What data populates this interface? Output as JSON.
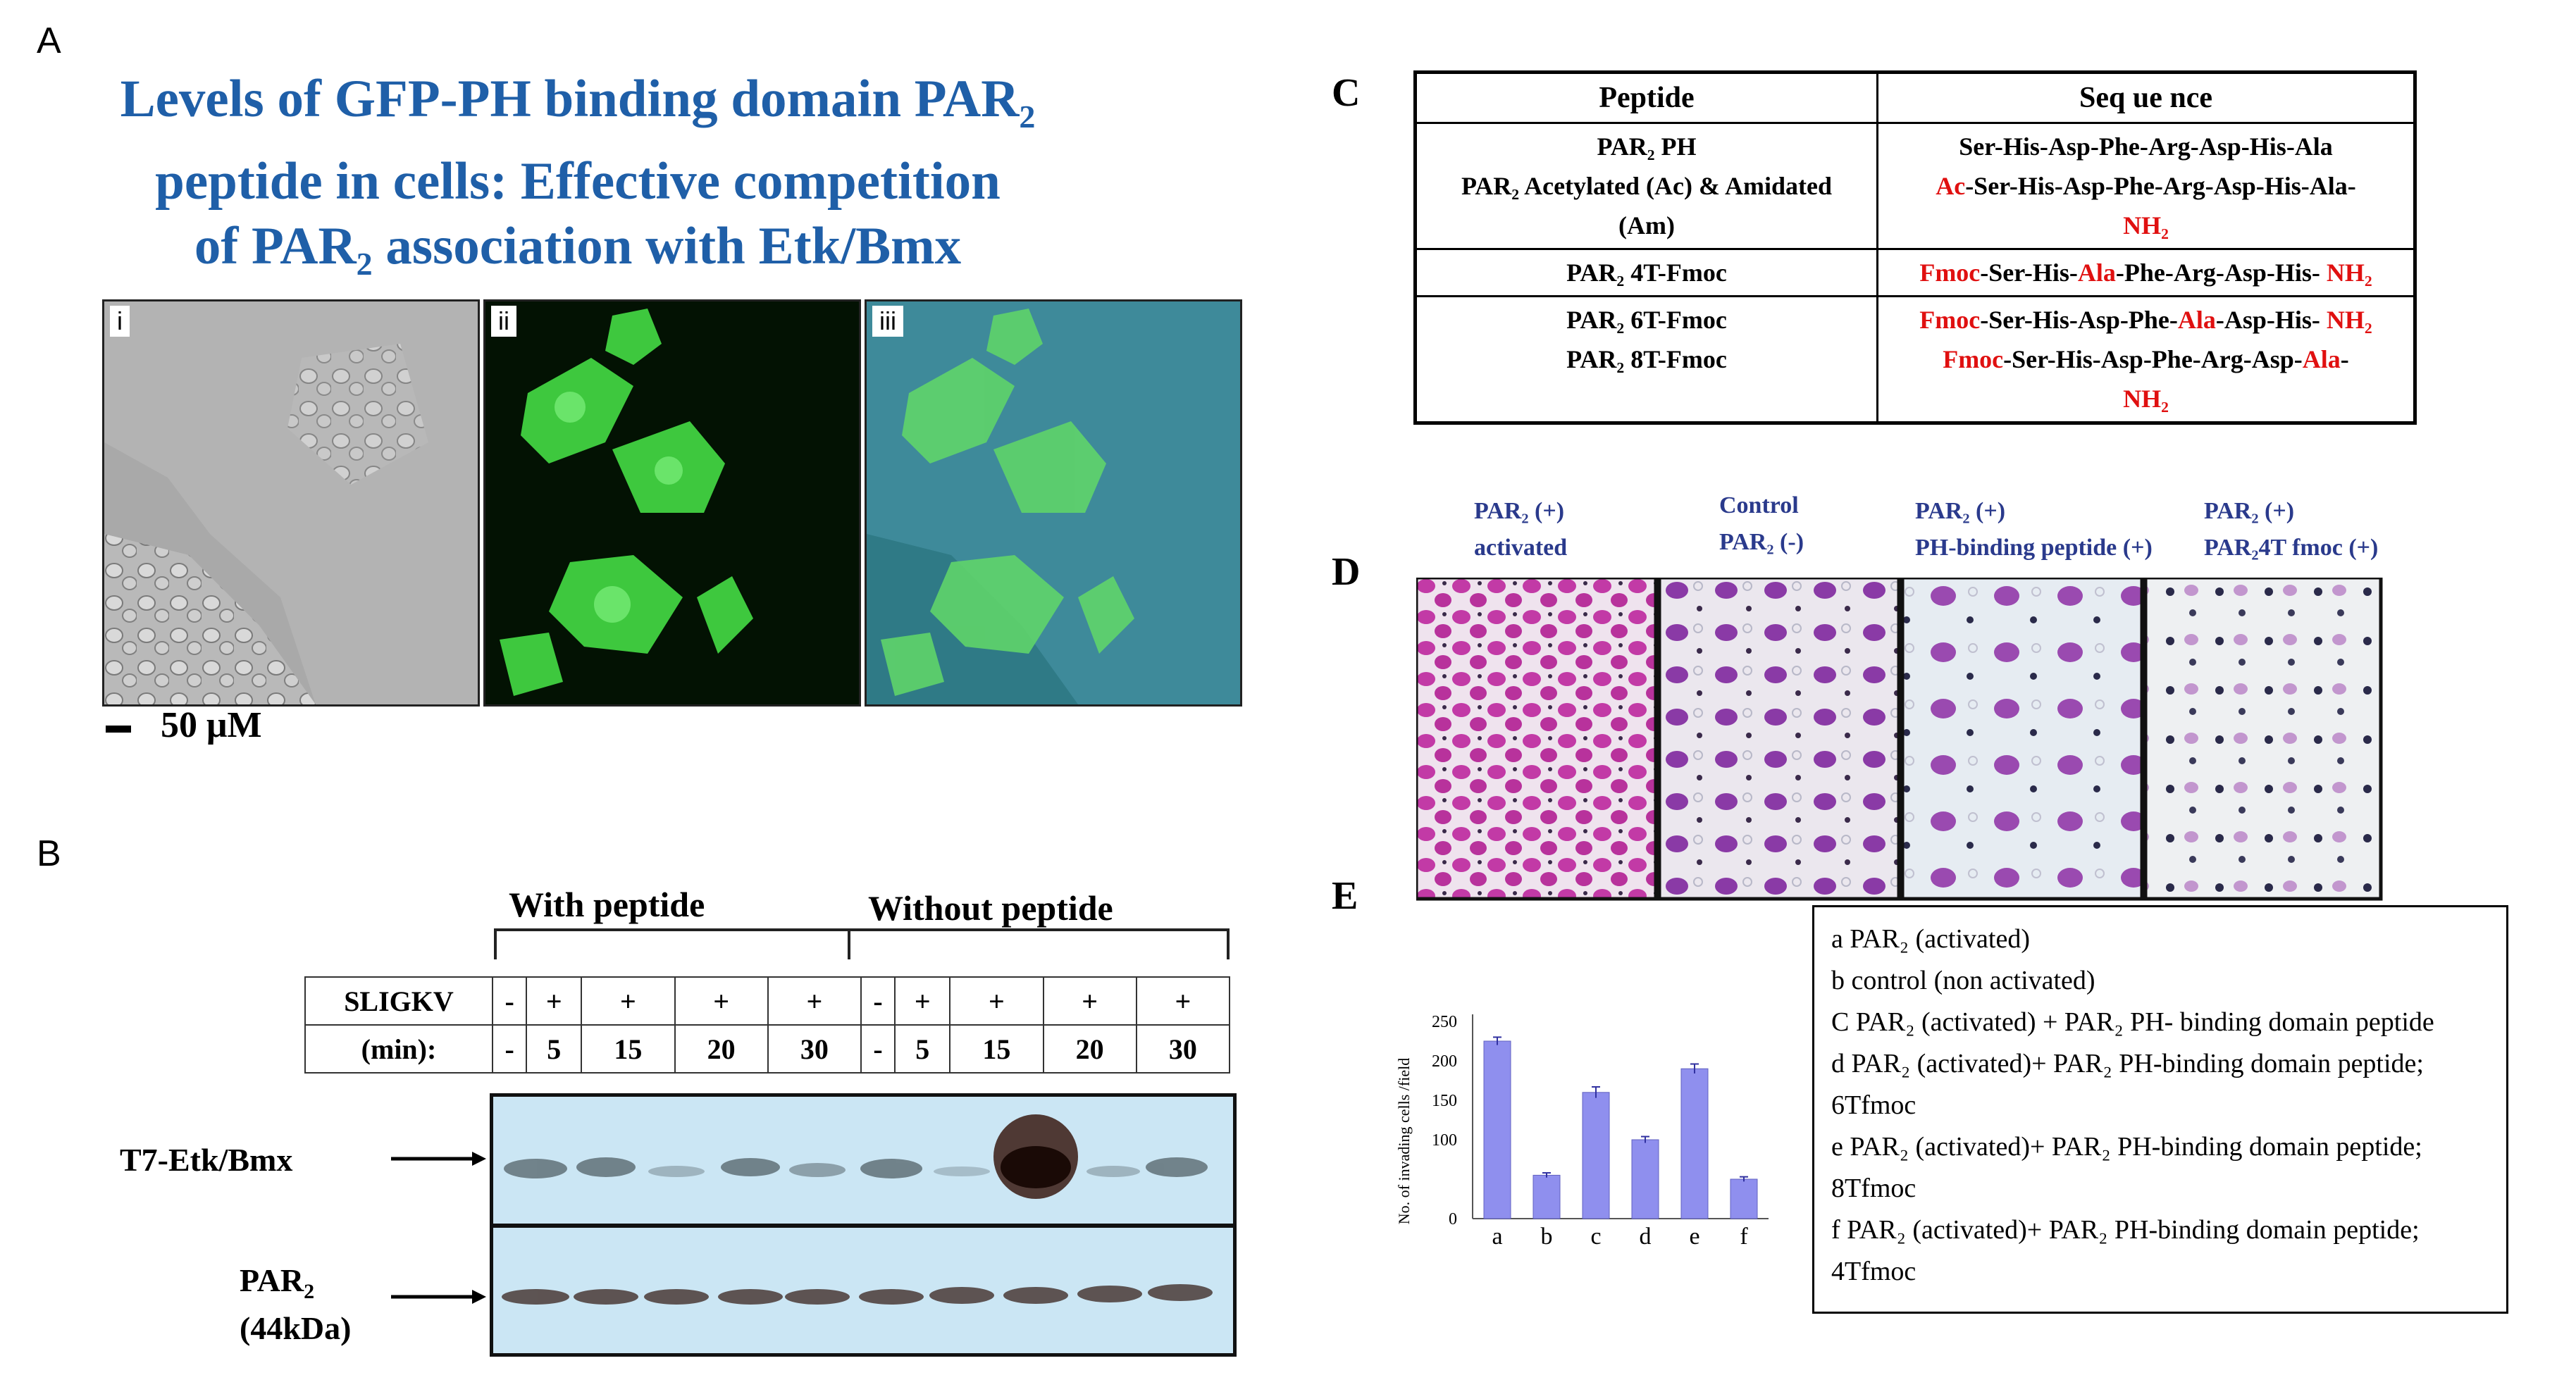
{
  "panels": {
    "a": "A",
    "b": "B",
    "c": "C",
    "d": "D",
    "e": "E"
  },
  "panel_a": {
    "title_line1": "Levels of GFP-PH binding domain PAR",
    "title_line1_sub": "2",
    "title_line2": "peptide in cells: Effective competition",
    "title_line3_pre": "of PAR",
    "title_line3_sub": "2",
    "title_line3_post": " association with Etk/Bmx",
    "images": [
      {
        "label": "i"
      },
      {
        "label": "ii"
      },
      {
        "label": "iii"
      }
    ],
    "scale": "50 μM"
  },
  "panel_b": {
    "group_with": "With peptide",
    "group_without": "Without peptide",
    "row1_label": "SLIGKV",
    "row1": [
      "-",
      "+",
      "+",
      "+",
      "+",
      "-",
      "+",
      "+",
      "+",
      "+"
    ],
    "row2_label": "(min):",
    "row2": [
      "-",
      "5",
      "15",
      "20",
      "30",
      "-",
      "5",
      "15",
      "20",
      "30"
    ],
    "blot1_label": "T7-Etk/Bmx",
    "blot2_label": "PAR",
    "blot2_label_sub": "2",
    "blot2_label2": "(44kDa)"
  },
  "panel_c": {
    "header_peptide": "Peptide",
    "header_sequence": "Seq ue nce",
    "r1_peptides": [
      "PAR₂ PH",
      "PAR₂ Acetylated (Ac) & Amidated",
      "(Am)"
    ],
    "r1_seq1": "Ser-His-Asp-Phe-Arg-Asp-His-Ala",
    "r1_seq2_red": "Ac",
    "r1_seq2": "-Ser-His-Asp-Phe-Arg-Asp-His-Ala-",
    "r1_seq3_red": "NH₂",
    "r2_peptide": "PAR₂ 4T-Fmoc",
    "r2_a": "Fmoc",
    "r2_b": "-Ser-His-",
    "r2_c": "Ala",
    "r2_d": "-Phe-Arg-Asp-His- ",
    "r2_e": "NH₂",
    "r3_peptides": [
      "PAR₂ 6T-Fmoc",
      "PAR₂ 8T-Fmoc"
    ],
    "r3_l1_a": "Fmoc",
    "r3_l1_b": "-Ser-His-Asp-Phe-",
    "r3_l1_c": "Ala",
    "r3_l1_d": "-Asp-His- ",
    "r3_l1_e": "NH₂",
    "r3_l2_a": "Fmoc",
    "r3_l2_b": "-Ser-His-Asp-Phe-Arg-Asp-",
    "r3_l2_c": "Ala",
    "r3_l2_d": "-",
    "r3_l3": "NH₂"
  },
  "panel_d": {
    "labels": [
      [
        "PAR₂ (+)",
        "activated"
      ],
      [
        "Control",
        "PAR₂ (-)"
      ],
      [
        "PAR₂ (+)",
        "PH-binding  peptide  (+)"
      ],
      [
        "PAR₂ (+)",
        "PAR₂4T fmoc (+)"
      ]
    ]
  },
  "chart_data": {
    "type": "bar",
    "categories": [
      "a",
      "b",
      "c",
      "d",
      "e",
      "f"
    ],
    "values": [
      225,
      55,
      160,
      100,
      190,
      50
    ],
    "errors": [
      5,
      3,
      7,
      4,
      6,
      3
    ],
    "ylabel": "No. of invading cells /field",
    "yticks": [
      0,
      100,
      150,
      200,
      250
    ],
    "ylim": [
      0,
      250
    ],
    "bar_color": "#8f8fee",
    "grid": false
  },
  "legend": [
    "a    PAR₂ (activated)",
    "b    control (non activated)",
    "C   PAR₂ (activated) + PAR₂ PH- binding  domain peptide",
    "d    PAR₂ (activated)+ PAR₂ PH-binding domain peptide;",
    "6Tfmoc",
    "e    PAR₂ (activated)+ PAR₂ PH-binding domain peptide;",
    "8Tfmoc",
    "f    PAR₂ (activated)+ PAR₂ PH-binding domain peptide;",
    "4Tfmoc"
  ]
}
